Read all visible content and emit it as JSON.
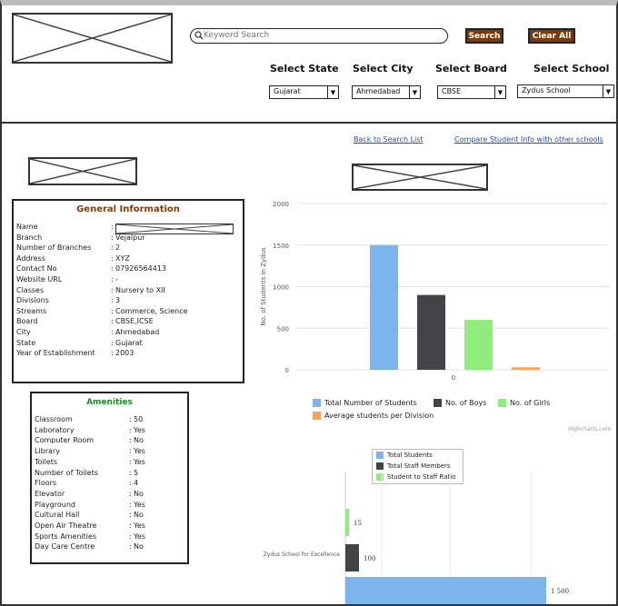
{
  "header": {
    "search": {
      "placeholder": "Keyword Search",
      "value": ""
    },
    "search_button": "Search",
    "clear_button": "Clear All",
    "filters": [
      {
        "label": "Select State",
        "value": "Gujarat"
      },
      {
        "label": "Select City",
        "value": "Ahmedabad"
      },
      {
        "label": "Select Board",
        "value": "CBSE"
      },
      {
        "label": "Select School",
        "value": "Zydus School"
      }
    ]
  },
  "links": {
    "back": "Back to Search List",
    "compare": "Compare Student Info with other schools"
  },
  "general_info": {
    "title": "General Information",
    "rows": [
      {
        "key": "Name",
        "value": ""
      },
      {
        "key": "Branch",
        "value": "Vejalpur"
      },
      {
        "key": "Number of Branches",
        "value": "2"
      },
      {
        "key": "Address",
        "value": "XYZ"
      },
      {
        "key": "Contact No",
        "value": "07926564413"
      },
      {
        "key": "Website URL",
        "value": "-"
      },
      {
        "key": "Classes",
        "value": "Nursery to XII"
      },
      {
        "key": "Divisions",
        "value": "3"
      },
      {
        "key": "Streams",
        "value": "Commerce, Science"
      },
      {
        "key": "Board",
        "value": "CBSE,ICSE"
      },
      {
        "key": "City",
        "value": "Ahmedabad"
      },
      {
        "key": "State",
        "value": "Gujarat"
      },
      {
        "key": "Year of Establishment",
        "value": "2003"
      }
    ]
  },
  "amenities": {
    "title": "Amenities",
    "rows": [
      {
        "key": "Classroom",
        "value": "50"
      },
      {
        "key": "Laboratory",
        "value": "Yes"
      },
      {
        "key": "Computer Room",
        "value": "No"
      },
      {
        "key": "Library",
        "value": "Yes"
      },
      {
        "key": "Toilets",
        "value": "Yes"
      },
      {
        "key": "Number of Toilets",
        "value": "5"
      },
      {
        "key": "Floors",
        "value": "4"
      },
      {
        "key": "Elevator",
        "value": "No"
      },
      {
        "key": "Playground",
        "value": "Yes"
      },
      {
        "key": "Cultural Hall",
        "value": "No"
      },
      {
        "key": "Open Air Theatre",
        "value": "Yes"
      },
      {
        "key": "Sports Amenities",
        "value": "Yes"
      },
      {
        "key": "Day Care Centre",
        "value": "No"
      }
    ]
  },
  "colors": {
    "accent_button": "#7a3b0c",
    "link": "#1f4fa8",
    "panel_title": "#7a3b0c",
    "amenities_title": "#1f8a2e"
  },
  "chart_data": [
    {
      "type": "bar",
      "ylabel": "No. of Students in Zydus",
      "ylim": [
        0,
        2000
      ],
      "yticks": [
        "0",
        "500",
        "1000",
        "1500",
        "2000"
      ],
      "categories": [
        "0"
      ],
      "series": [
        {
          "name": "Total Number of Students",
          "values": [
            1500
          ],
          "color": "#7cb5ec"
        },
        {
          "name": "No. of Boys",
          "values": [
            900
          ],
          "color": "#434348"
        },
        {
          "name": "No. of Girls",
          "values": [
            600
          ],
          "color": "#90ed7d"
        },
        {
          "name": "Average students per Division",
          "values": [
            30
          ],
          "color": "#f7a35c"
        }
      ],
      "legend": "bottom",
      "credit": "Highcharts.com",
      "grid": true
    },
    {
      "type": "bar",
      "orientation": "horizontal",
      "categories": [
        "Zydus School for Excellence"
      ],
      "series": [
        {
          "name": "Total Students",
          "values": [
            1500
          ],
          "label": "1 500",
          "color": "#7cb5ec"
        },
        {
          "name": "Total Staff Members",
          "values": [
            100
          ],
          "label": "100",
          "color": "#434348"
        },
        {
          "name": "Student to Staff Ratio",
          "values": [
            15
          ],
          "label": "15",
          "color": "#90ed7d"
        }
      ],
      "legend": "top"
    }
  ]
}
